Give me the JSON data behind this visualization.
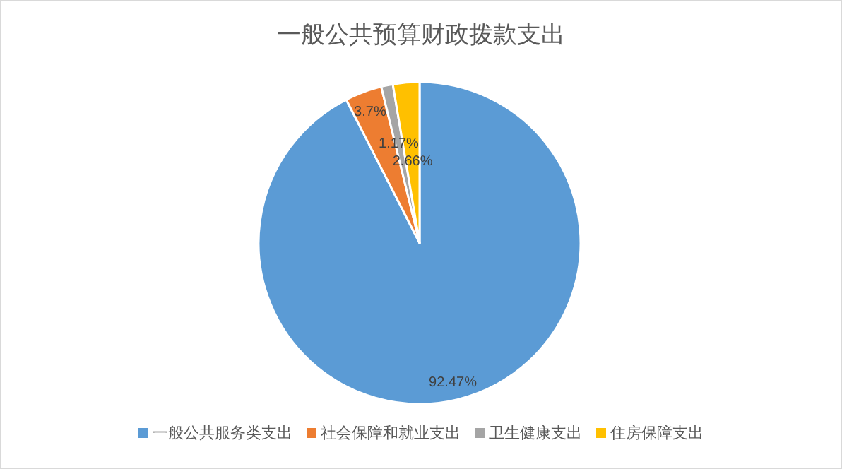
{
  "chart_data": {
    "type": "pie",
    "title": "一般公共预算财政拨款支出",
    "categories": [
      "一般公共服务类支出",
      "社会保障和就业支出",
      "卫生健康支出",
      "住房保障支出"
    ],
    "values": [
      92.47,
      3.7,
      1.17,
      2.66
    ],
    "colors": [
      "#5b9bd5",
      "#ed7d31",
      "#a5a5a5",
      "#ffc000"
    ],
    "value_labels": [
      "92.47%",
      "3.7%",
      "1.17%",
      "2.66%"
    ],
    "legend": "bottom"
  }
}
